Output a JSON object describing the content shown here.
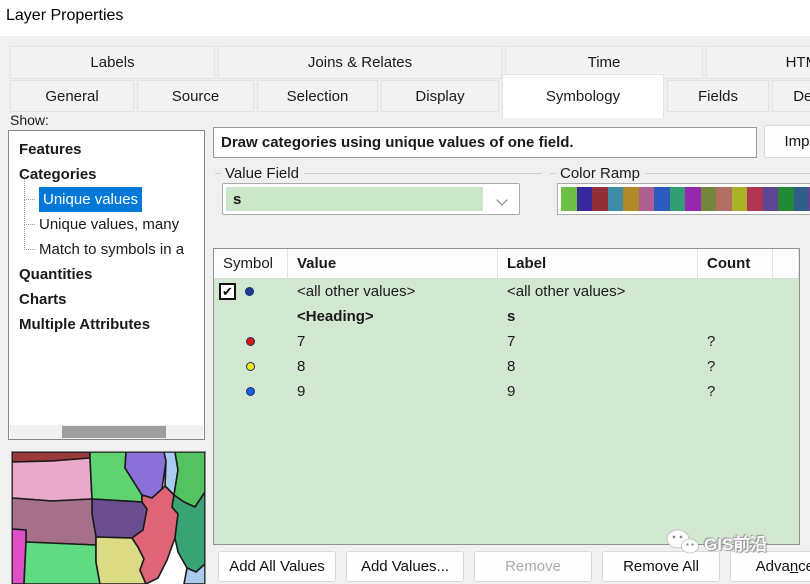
{
  "window": {
    "title": "Layer Properties"
  },
  "tabs": {
    "row1": [
      {
        "label": "Labels"
      },
      {
        "label": "Joins & Relates"
      },
      {
        "label": "Time"
      },
      {
        "label": "HTML"
      }
    ],
    "row2": [
      {
        "label": "General"
      },
      {
        "label": "Source"
      },
      {
        "label": "Selection"
      },
      {
        "label": "Display"
      },
      {
        "label": "Symbology",
        "active": true
      },
      {
        "label": "Fields"
      },
      {
        "label": "Definition Query"
      }
    ]
  },
  "show_panel": {
    "label": "Show:",
    "tree": [
      {
        "label": "Features",
        "type": "head"
      },
      {
        "label": "Categories",
        "type": "head"
      },
      {
        "label": "Unique values",
        "type": "child",
        "selected": true
      },
      {
        "label": "Unique values, many",
        "type": "child"
      },
      {
        "label": "Match to symbols in a",
        "type": "child"
      },
      {
        "label": "Quantities",
        "type": "head"
      },
      {
        "label": "Charts",
        "type": "head"
      },
      {
        "label": "Multiple Attributes",
        "type": "head"
      }
    ]
  },
  "symbology": {
    "description": "Draw categories using unique values of one field.",
    "import_button": "Import...",
    "value_field": {
      "group_label": "Value Field",
      "selected_value": "s"
    },
    "color_ramp": {
      "group_label": "Color Ramp",
      "colors": [
        "#6DBE45",
        "#38299E",
        "#92303A",
        "#3E8CA8",
        "#B08A28",
        "#B05F93",
        "#2D5BC0",
        "#339E71",
        "#9727AE",
        "#74863C",
        "#B06F62",
        "#AAB027",
        "#B23555",
        "#5F4596",
        "#238A34",
        "#2F5F88",
        "#B0259E"
      ]
    },
    "table": {
      "columns": [
        "Symbol",
        "Value",
        "Label",
        "Count"
      ],
      "rows": [
        {
          "checked": true,
          "symbol_color": "#1f3a93",
          "value": "<all other values>",
          "label": "<all other values>",
          "count": ""
        },
        {
          "symbol_color": null,
          "value": "<Heading>",
          "label": "s",
          "count": ""
        },
        {
          "symbol_color": "#e01515",
          "value": "7",
          "label": "7",
          "count": "?"
        },
        {
          "symbol_color": "#f2e71c",
          "value": "8",
          "label": "8",
          "count": "?"
        },
        {
          "symbol_color": "#1a5fe0",
          "value": "9",
          "label": "9",
          "count": "?"
        }
      ]
    },
    "buttons": {
      "add_all": "Add All Values",
      "add_values": "Add Values...",
      "remove": "Remove",
      "remove_all": "Remove All",
      "advanced_pre": "Adva",
      "advanced_key": "n",
      "advanced_post": "ced"
    }
  },
  "map_preview": {
    "region_colors": [
      "#9A3A3A",
      "#E8A9CB",
      "#5FD370",
      "#8A70D8",
      "#A9CBEE",
      "#53C361",
      "#6A4E90",
      "#A6708A",
      "#E04FC8",
      "#5FDC82",
      "#DBDB85",
      "#E06478",
      "#3AA374",
      "#A9CBEE"
    ]
  },
  "watermark": {
    "text": "GIS前沿"
  },
  "icons": {
    "check": "✔"
  },
  "colors": {
    "selection_blue": "#0078d7",
    "field_green": "#cbe6c9",
    "table_green": "#d3e8d1",
    "dialog_gray": "#f0f0f0"
  }
}
